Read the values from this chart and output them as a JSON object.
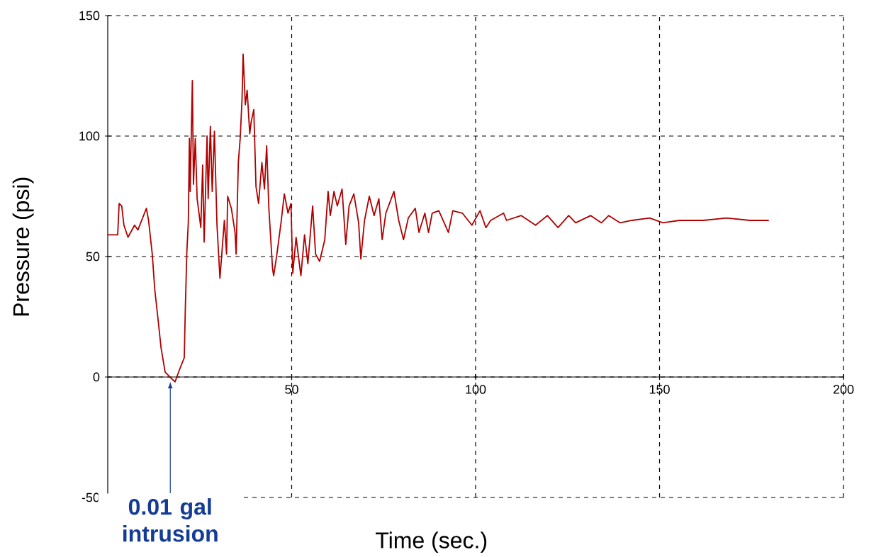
{
  "chart_data": {
    "type": "line",
    "xlabel": "Time (sec.)",
    "ylabel": "Pressure (psi)",
    "color": "#b00000",
    "x": [
      0,
      2.7,
      3.1,
      3.8,
      4.4,
      5.5,
      7.3,
      8.2,
      10.5,
      11.1,
      12.1,
      12.8,
      13.6,
      14.5,
      15.6,
      16.9,
      18.3,
      19.5,
      20.8,
      21.1,
      21.5,
      21.9,
      22.2,
      22.4,
      23,
      23.3,
      23.8,
      24.3,
      25.3,
      25.8,
      26.2,
      27,
      27.3,
      27.9,
      28.4,
      29,
      29.5,
      29.7,
      30.5,
      31,
      31.7,
      32.3,
      32.6,
      33.6,
      34.6,
      34.9,
      35.2,
      35.5,
      36,
      36.5,
      36.8,
      37.4,
      37.9,
      38.6,
      39,
      39.7,
      40.3,
      41,
      41.9,
      42.6,
      43.2,
      43.8,
      44.8,
      45.1,
      45.9,
      47.1,
      48,
      49,
      49.8,
      50.3,
      51.2,
      52.5,
      53.5,
      54.4,
      55.7,
      56.5,
      57.6,
      59,
      59.9,
      60.5,
      61.5,
      62.4,
      63.7,
      64.7,
      65.6,
      66.9,
      68.2,
      68.8,
      69.8,
      71.1,
      72.4,
      73.7,
      74.6,
      75.6,
      77.8,
      79.1,
      80.4,
      81.7,
      83.6,
      84.6,
      86.2,
      87.2,
      88.2,
      90,
      92.6,
      93.8,
      96.4,
      99,
      101.2,
      102.8,
      104.1,
      107.6,
      108.4,
      112.4,
      116.3,
      119.5,
      122.4,
      125.3,
      127.2,
      131.3,
      134.2,
      136.2,
      139.3,
      142.5,
      147.3,
      150.9,
      155.4,
      161.8,
      168.2,
      174.6,
      179.7
    ],
    "values": [
      59,
      59,
      72,
      71,
      63,
      58,
      63,
      61,
      70,
      65,
      51,
      36,
      25,
      12,
      2,
      0,
      -2,
      3,
      8,
      29,
      52,
      64,
      99,
      77,
      123,
      80,
      99,
      74,
      62,
      88,
      56,
      100,
      74,
      104,
      77,
      102,
      74,
      63,
      41,
      51,
      65,
      51,
      75,
      70,
      60,
      51,
      70,
      89,
      99,
      115,
      134,
      113,
      119,
      101,
      106,
      111,
      79,
      72,
      89,
      78,
      96,
      70,
      45,
      42,
      50,
      64,
      76,
      68,
      72,
      43,
      58,
      42,
      59,
      47,
      71,
      51,
      48,
      57,
      77,
      67,
      77,
      71,
      78,
      55,
      71,
      76,
      64,
      49,
      65,
      75,
      67,
      74,
      57,
      68,
      77,
      65,
      57,
      66,
      70,
      60,
      68,
      60,
      68,
      69,
      60,
      69,
      68,
      63,
      69,
      62,
      65,
      68,
      65,
      67,
      63,
      67,
      62,
      67,
      64,
      67,
      64,
      67,
      64,
      65,
      66,
      64,
      65,
      65,
      66,
      65,
      65
    ],
    "xlim": [
      0,
      200
    ],
    "ylim": [
      -50,
      150
    ],
    "xticks": [
      50,
      100,
      150,
      200
    ],
    "yticks": [
      -50,
      0,
      50,
      100,
      150
    ],
    "grid": true,
    "annotations": [
      {
        "text": "0.01 gal intrusion",
        "x": 17,
        "y": -2
      }
    ]
  }
}
